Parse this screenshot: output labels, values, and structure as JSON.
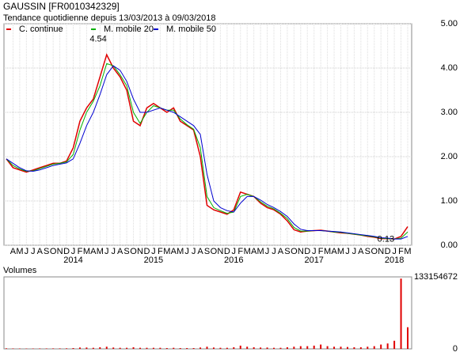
{
  "chart_data": [
    {
      "type": "line",
      "title": "GAUSSIN [FR0010342329]",
      "subtitle": "Tendance quotidienne depuis 13/03/2013 à 09/03/2018",
      "x": [
        "2013-03",
        "2013-04",
        "2013-05",
        "2013-06",
        "2013-07",
        "2013-08",
        "2013-09",
        "2013-10",
        "2013-11",
        "2013-12",
        "2014-01",
        "2014-02",
        "2014-03",
        "2014-04",
        "2014-05",
        "2014-06",
        "2014-07",
        "2014-08",
        "2014-09",
        "2014-10",
        "2014-11",
        "2014-12",
        "2015-01",
        "2015-02",
        "2015-03",
        "2015-04",
        "2015-05",
        "2015-06",
        "2015-07",
        "2015-08",
        "2015-09",
        "2015-10",
        "2015-11",
        "2015-12",
        "2016-01",
        "2016-02",
        "2016-03",
        "2016-04",
        "2016-05",
        "2016-06",
        "2016-07",
        "2016-08",
        "2016-09",
        "2016-10",
        "2016-11",
        "2016-12",
        "2017-01",
        "2017-02",
        "2017-03",
        "2017-04",
        "2017-05",
        "2017-06",
        "2017-07",
        "2017-08",
        "2017-09",
        "2017-10",
        "2017-11",
        "2017-12",
        "2018-01",
        "2018-02",
        "2018-03"
      ],
      "series": [
        {
          "name": "C. continue",
          "color": "#e00000",
          "values": [
            1.95,
            1.75,
            1.7,
            1.65,
            1.7,
            1.75,
            1.8,
            1.85,
            1.85,
            1.9,
            2.2,
            2.8,
            3.1,
            3.3,
            3.8,
            4.3,
            4.0,
            3.8,
            3.5,
            2.8,
            2.7,
            3.1,
            3.2,
            3.1,
            3.0,
            3.1,
            2.8,
            2.7,
            2.6,
            2.0,
            0.9,
            0.8,
            0.75,
            0.7,
            0.8,
            1.2,
            1.15,
            1.1,
            0.95,
            0.85,
            0.8,
            0.7,
            0.55,
            0.35,
            0.3,
            0.32,
            0.33,
            0.34,
            0.32,
            0.3,
            0.28,
            0.27,
            0.25,
            0.23,
            0.2,
            0.18,
            0.15,
            0.15,
            0.14,
            0.2,
            0.42
          ]
        },
        {
          "name": "M. mobile 20",
          "color": "#00b000",
          "values": [
            1.95,
            1.8,
            1.72,
            1.67,
            1.68,
            1.73,
            1.78,
            1.83,
            1.85,
            1.88,
            2.05,
            2.6,
            3.0,
            3.25,
            3.6,
            4.1,
            4.05,
            3.85,
            3.6,
            3.0,
            2.75,
            3.0,
            3.15,
            3.1,
            3.05,
            3.05,
            2.85,
            2.72,
            2.62,
            2.2,
            1.1,
            0.85,
            0.78,
            0.72,
            0.75,
            1.1,
            1.15,
            1.1,
            0.98,
            0.88,
            0.82,
            0.72,
            0.6,
            0.4,
            0.32,
            0.32,
            0.33,
            0.33,
            0.32,
            0.3,
            0.29,
            0.27,
            0.25,
            0.23,
            0.21,
            0.19,
            0.16,
            0.15,
            0.14,
            0.16,
            0.3
          ]
        },
        {
          "name": "M. mobile 50",
          "color": "#0000d0",
          "values": [
            1.95,
            1.85,
            1.75,
            1.68,
            1.67,
            1.7,
            1.75,
            1.8,
            1.83,
            1.86,
            1.95,
            2.3,
            2.7,
            3.0,
            3.4,
            3.85,
            4.05,
            3.95,
            3.7,
            3.3,
            3.0,
            3.0,
            3.05,
            3.1,
            3.05,
            3.0,
            2.9,
            2.8,
            2.7,
            2.5,
            1.6,
            1.0,
            0.85,
            0.78,
            0.75,
            0.95,
            1.1,
            1.1,
            1.02,
            0.92,
            0.85,
            0.76,
            0.65,
            0.48,
            0.36,
            0.33,
            0.33,
            0.33,
            0.32,
            0.31,
            0.3,
            0.28,
            0.26,
            0.24,
            0.22,
            0.2,
            0.17,
            0.16,
            0.14,
            0.14,
            0.2
          ]
        }
      ],
      "annotations": [
        {
          "x": "2014-06",
          "value": 4.54
        },
        {
          "x": "2018-01",
          "value": 0.13
        }
      ],
      "ylim": [
        0,
        5
      ],
      "yticks": [
        {
          "value": 0,
          "label": "0.00"
        },
        {
          "value": 1,
          "label": "1.00"
        },
        {
          "value": 2,
          "label": "2.00"
        },
        {
          "value": 3,
          "label": "3.00"
        },
        {
          "value": 4,
          "label": "4.00"
        },
        {
          "value": 5,
          "label": "5.00"
        }
      ],
      "xticks": [
        {
          "value": "2013-04",
          "label": "A"
        },
        {
          "value": "2013-05",
          "label": "M"
        },
        {
          "value": "2013-06",
          "label": "J"
        },
        {
          "value": "2013-07",
          "label": "J"
        },
        {
          "value": "2013-08",
          "label": "A"
        },
        {
          "value": "2013-09",
          "label": "S"
        },
        {
          "value": "2013-10",
          "label": "O"
        },
        {
          "value": "2013-11",
          "label": "N"
        },
        {
          "value": "2013-12",
          "label": "D"
        },
        {
          "value": "2014-01",
          "label": "J"
        },
        {
          "value": "2014-02",
          "label": "F"
        },
        {
          "value": "2014-03",
          "label": "M"
        },
        {
          "value": "2014-04",
          "label": "A"
        },
        {
          "value": "2014-05",
          "label": "M"
        },
        {
          "value": "2014-06",
          "label": "J"
        },
        {
          "value": "2014-07",
          "label": "J"
        },
        {
          "value": "2014-08",
          "label": "A"
        },
        {
          "value": "2014-09",
          "label": "S"
        },
        {
          "value": "2014-10",
          "label": "O"
        },
        {
          "value": "2014-11",
          "label": "N"
        },
        {
          "value": "2014-12",
          "label": "D"
        },
        {
          "value": "2015-01",
          "label": "J"
        },
        {
          "value": "2015-02",
          "label": "F"
        },
        {
          "value": "2015-03",
          "label": "M"
        },
        {
          "value": "2015-04",
          "label": "A"
        },
        {
          "value": "2015-05",
          "label": "M"
        },
        {
          "value": "2015-06",
          "label": "J"
        },
        {
          "value": "2015-07",
          "label": "J"
        },
        {
          "value": "2015-08",
          "label": "A"
        },
        {
          "value": "2015-09",
          "label": "S"
        },
        {
          "value": "2015-10",
          "label": "O"
        },
        {
          "value": "2015-11",
          "label": "N"
        },
        {
          "value": "2015-12",
          "label": "D"
        },
        {
          "value": "2016-01",
          "label": "J"
        },
        {
          "value": "2016-02",
          "label": "F"
        },
        {
          "value": "2016-03",
          "label": "M"
        },
        {
          "value": "2016-04",
          "label": "A"
        },
        {
          "value": "2016-05",
          "label": "M"
        },
        {
          "value": "2016-06",
          "label": "J"
        },
        {
          "value": "2016-07",
          "label": "J"
        },
        {
          "value": "2016-08",
          "label": "A"
        },
        {
          "value": "2016-09",
          "label": "S"
        },
        {
          "value": "2016-10",
          "label": "O"
        },
        {
          "value": "2016-11",
          "label": "N"
        },
        {
          "value": "2016-12",
          "label": "D"
        },
        {
          "value": "2017-01",
          "label": "J"
        },
        {
          "value": "2017-02",
          "label": "F"
        },
        {
          "value": "2017-03",
          "label": "M"
        },
        {
          "value": "2017-04",
          "label": "A"
        },
        {
          "value": "2017-05",
          "label": "M"
        },
        {
          "value": "2017-06",
          "label": "J"
        },
        {
          "value": "2017-07",
          "label": "J"
        },
        {
          "value": "2017-08",
          "label": "A"
        },
        {
          "value": "2017-09",
          "label": "S"
        },
        {
          "value": "2017-10",
          "label": "O"
        },
        {
          "value": "2017-11",
          "label": "N"
        },
        {
          "value": "2017-12",
          "label": "D"
        },
        {
          "value": "2018-01",
          "label": "J"
        },
        {
          "value": "2018-02",
          "label": "F"
        },
        {
          "value": "2018-03",
          "label": "M"
        }
      ],
      "year_labels": [
        {
          "value": "2014-01",
          "label": "2014"
        },
        {
          "value": "2015-01",
          "label": "2015"
        },
        {
          "value": "2016-01",
          "label": "2016"
        },
        {
          "value": "2017-01",
          "label": "2017"
        },
        {
          "value": "2018-01",
          "label": "2018"
        }
      ],
      "grid": true
    },
    {
      "type": "bar",
      "title": "Volumes",
      "color": "#e00000",
      "x": [
        "2013-03",
        "2013-04",
        "2013-05",
        "2013-06",
        "2013-07",
        "2013-08",
        "2013-09",
        "2013-10",
        "2013-11",
        "2013-12",
        "2014-01",
        "2014-02",
        "2014-03",
        "2014-04",
        "2014-05",
        "2014-06",
        "2014-07",
        "2014-08",
        "2014-09",
        "2014-10",
        "2014-11",
        "2014-12",
        "2015-01",
        "2015-02",
        "2015-03",
        "2015-04",
        "2015-05",
        "2015-06",
        "2015-07",
        "2015-08",
        "2015-09",
        "2015-10",
        "2015-11",
        "2015-12",
        "2016-01",
        "2016-02",
        "2016-03",
        "2016-04",
        "2016-05",
        "2016-06",
        "2016-07",
        "2016-08",
        "2016-09",
        "2016-10",
        "2016-11",
        "2016-12",
        "2017-01",
        "2017-02",
        "2017-03",
        "2017-04",
        "2017-05",
        "2017-06",
        "2017-07",
        "2017-08",
        "2017-09",
        "2017-10",
        "2017-11",
        "2017-12",
        "2018-01",
        "2018-02",
        "2018-03"
      ],
      "values": [
        1000000,
        800000,
        700000,
        600000,
        700000,
        800000,
        800000,
        900000,
        900000,
        1000000,
        1500000,
        2500000,
        2500000,
        2000000,
        3000000,
        4000000,
        2500000,
        2000000,
        2000000,
        3000000,
        2000000,
        2000000,
        2000000,
        2000000,
        1500000,
        2000000,
        1500000,
        1500000,
        1500000,
        2500000,
        4000000,
        2500000,
        2000000,
        2000000,
        3000000,
        6000000,
        4000000,
        3000000,
        2500000,
        2500000,
        2000000,
        2000000,
        3000000,
        4000000,
        5000000,
        5000000,
        6000000,
        8000000,
        5000000,
        4000000,
        4000000,
        3500000,
        3000000,
        3000000,
        4000000,
        5000000,
        8000000,
        10000000,
        15000000,
        130000000,
        40000000
      ],
      "ylim": [
        0,
        133154672
      ],
      "yticks": [
        0,
        133154672
      ]
    }
  ]
}
